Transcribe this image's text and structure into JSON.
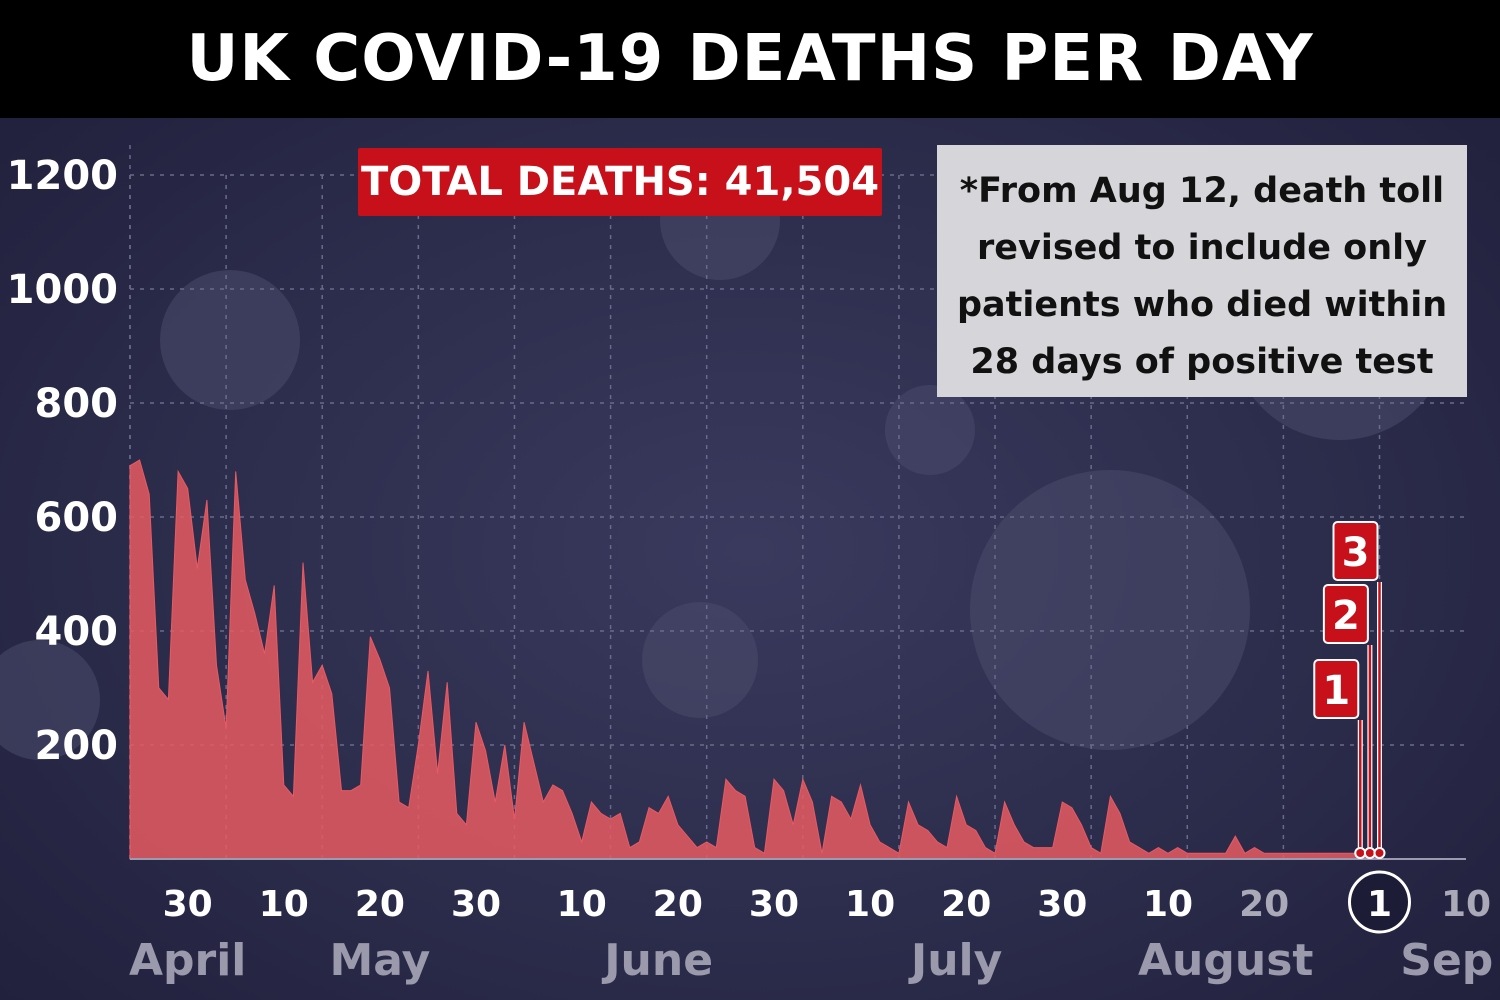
{
  "title": "UK COVID-19 DEATHS PER DAY",
  "total_label": "TOTAL DEATHS:  41,504",
  "note_lines": [
    "*From Aug 12, death toll",
    "revised to include only",
    "patients who died within",
    "28 days of positive test"
  ],
  "colors": {
    "background": "#2a2a4a",
    "area": "#e85a62",
    "accent": "#c8101a",
    "note_bg": "#d6d6da"
  },
  "chart_data": {
    "type": "area",
    "ylim": [
      0,
      1200
    ],
    "yticks": [
      200,
      400,
      600,
      800,
      1000,
      1200
    ],
    "x_start": "2020-04-24",
    "x_end": "2020-09-10",
    "xtick_labels": [
      {
        "label": "30",
        "date": "2020-04-30",
        "dim": false
      },
      {
        "label": "10",
        "date": "2020-05-10",
        "dim": false
      },
      {
        "label": "20",
        "date": "2020-05-20",
        "dim": false
      },
      {
        "label": "30",
        "date": "2020-05-30",
        "dim": false
      },
      {
        "label": "10",
        "date": "2020-06-10",
        "dim": false
      },
      {
        "label": "20",
        "date": "2020-06-20",
        "dim": false
      },
      {
        "label": "30",
        "date": "2020-06-30",
        "dim": false
      },
      {
        "label": "10",
        "date": "2020-07-10",
        "dim": false
      },
      {
        "label": "20",
        "date": "2020-07-20",
        "dim": false
      },
      {
        "label": "30",
        "date": "2020-07-30",
        "dim": false
      },
      {
        "label": "10",
        "date": "2020-08-10",
        "dim": false
      },
      {
        "label": "20",
        "date": "2020-08-20",
        "dim": true
      },
      {
        "label": "1",
        "date": "2020-09-01",
        "dim": false,
        "circled": true
      },
      {
        "label": "10",
        "date": "2020-09-10",
        "dim": true
      }
    ],
    "months": [
      {
        "label": "April",
        "date": "2020-04-30"
      },
      {
        "label": "May",
        "date": "2020-05-20"
      },
      {
        "label": "June",
        "date": "2020-06-18"
      },
      {
        "label": "July",
        "date": "2020-07-19"
      },
      {
        "label": "August",
        "date": "2020-08-16"
      },
      {
        "label": "Sep",
        "date": "2020-09-08"
      }
    ],
    "series": [
      {
        "dates": [
          "2020-04-24",
          "2020-04-25",
          "2020-04-26",
          "2020-04-27",
          "2020-04-28",
          "2020-04-29",
          "2020-04-30",
          "2020-05-01",
          "2020-05-02",
          "2020-05-03",
          "2020-05-04",
          "2020-05-05",
          "2020-05-06",
          "2020-05-07",
          "2020-05-08",
          "2020-05-09",
          "2020-05-10",
          "2020-05-11",
          "2020-05-12",
          "2020-05-13",
          "2020-05-14",
          "2020-05-15",
          "2020-05-16",
          "2020-05-17",
          "2020-05-18",
          "2020-05-19",
          "2020-05-20",
          "2020-05-21",
          "2020-05-22",
          "2020-05-23",
          "2020-05-24",
          "2020-05-25",
          "2020-05-26",
          "2020-05-27",
          "2020-05-28",
          "2020-05-29",
          "2020-05-30",
          "2020-05-31",
          "2020-06-01",
          "2020-06-02",
          "2020-06-03",
          "2020-06-04",
          "2020-06-05",
          "2020-06-06",
          "2020-06-07",
          "2020-06-08",
          "2020-06-09",
          "2020-06-10",
          "2020-06-11",
          "2020-06-12",
          "2020-06-13",
          "2020-06-14",
          "2020-06-15",
          "2020-06-16",
          "2020-06-17",
          "2020-06-18",
          "2020-06-19",
          "2020-06-20",
          "2020-06-21",
          "2020-06-22",
          "2020-06-23",
          "2020-06-24",
          "2020-06-25",
          "2020-06-26",
          "2020-06-27",
          "2020-06-28",
          "2020-06-29",
          "2020-06-30",
          "2020-07-01",
          "2020-07-02",
          "2020-07-03",
          "2020-07-04",
          "2020-07-05",
          "2020-07-06",
          "2020-07-07",
          "2020-07-08",
          "2020-07-09",
          "2020-07-10",
          "2020-07-11",
          "2020-07-12",
          "2020-07-13",
          "2020-07-14",
          "2020-07-15",
          "2020-07-16",
          "2020-07-17",
          "2020-07-18",
          "2020-07-19",
          "2020-07-20",
          "2020-07-21",
          "2020-07-22",
          "2020-07-23",
          "2020-07-24",
          "2020-07-25",
          "2020-07-26",
          "2020-07-27",
          "2020-07-28",
          "2020-07-29",
          "2020-07-30",
          "2020-07-31",
          "2020-08-01",
          "2020-08-02",
          "2020-08-03",
          "2020-08-04",
          "2020-08-05",
          "2020-08-06",
          "2020-08-07",
          "2020-08-08",
          "2020-08-09",
          "2020-08-10",
          "2020-08-11",
          "2020-08-12",
          "2020-08-13",
          "2020-08-14",
          "2020-08-15",
          "2020-08-16",
          "2020-08-17",
          "2020-08-18",
          "2020-08-19",
          "2020-08-20",
          "2020-08-21",
          "2020-08-22",
          "2020-08-23",
          "2020-08-24",
          "2020-08-25",
          "2020-08-26",
          "2020-08-27",
          "2020-08-28",
          "2020-08-29",
          "2020-08-30",
          "2020-08-31",
          "2020-09-01"
        ],
        "values": [
          690,
          700,
          640,
          300,
          280,
          680,
          650,
          510,
          630,
          340,
          230,
          680,
          490,
          430,
          360,
          480,
          130,
          110,
          520,
          310,
          340,
          290,
          120,
          120,
          130,
          390,
          350,
          300,
          100,
          90,
          200,
          330,
          150,
          310,
          80,
          60,
          240,
          190,
          100,
          200,
          70,
          240,
          170,
          100,
          130,
          120,
          80,
          30,
          100,
          80,
          70,
          80,
          20,
          30,
          90,
          80,
          110,
          60,
          40,
          20,
          30,
          20,
          140,
          120,
          110,
          20,
          10,
          140,
          120,
          60,
          140,
          100,
          10,
          110,
          100,
          70,
          130,
          60,
          30,
          20,
          10,
          100,
          60,
          50,
          30,
          20,
          110,
          60,
          50,
          20,
          10,
          100,
          60,
          30,
          20,
          20,
          20,
          100,
          90,
          60,
          20,
          10,
          110,
          80,
          30,
          20,
          10,
          20,
          10,
          20,
          10,
          10,
          10,
          10,
          10,
          40,
          10,
          20,
          10,
          10,
          10,
          10,
          10,
          10,
          10,
          10,
          10,
          10,
          10,
          10,
          10
        ],
        "color": "#e85a62"
      }
    ],
    "markers": [
      {
        "label": "1",
        "date": "2020-08-30",
        "value": 1
      },
      {
        "label": "2",
        "date": "2020-08-31",
        "value": 2
      },
      {
        "label": "3",
        "date": "2020-09-01",
        "value": 3
      }
    ]
  }
}
